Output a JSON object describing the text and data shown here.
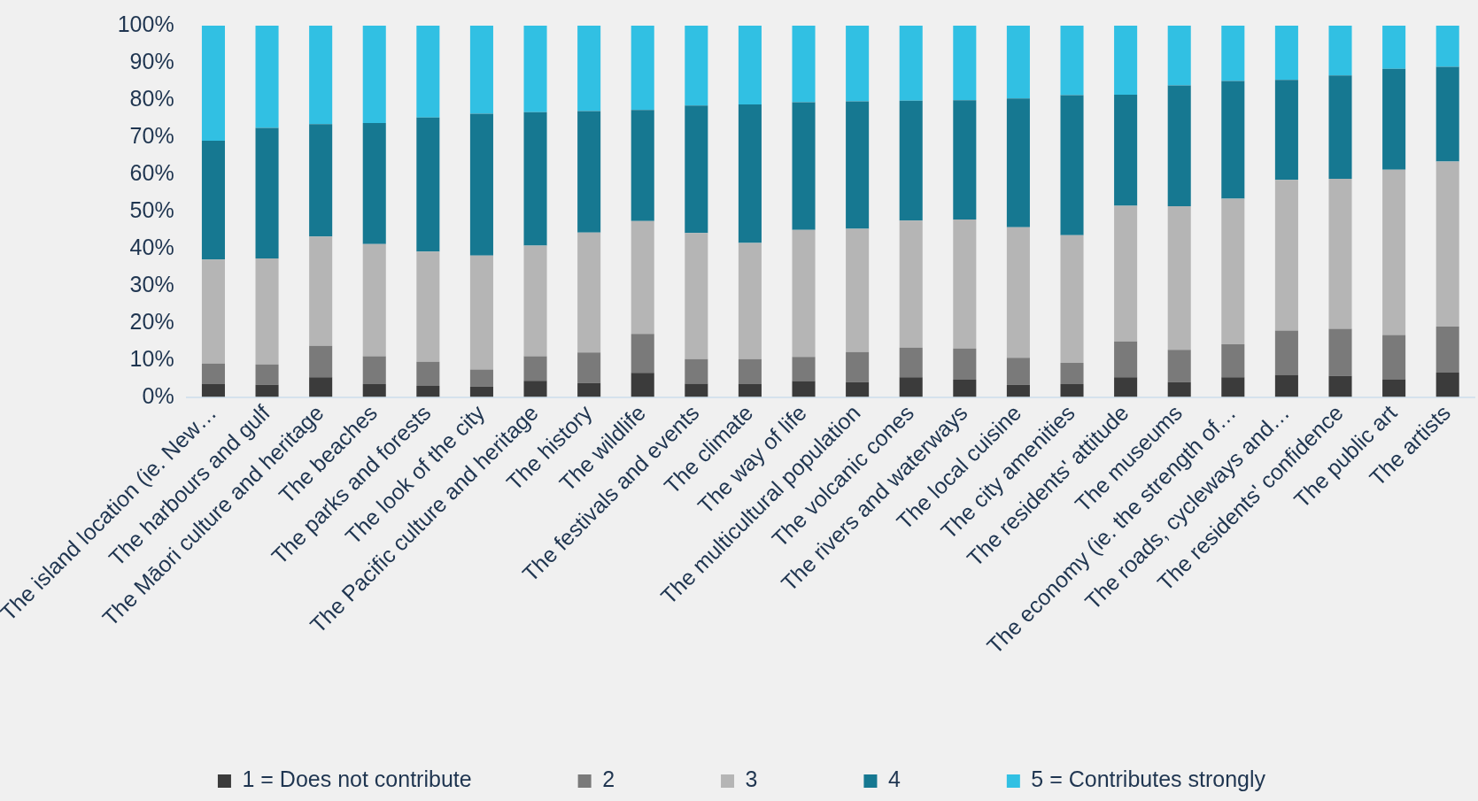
{
  "chart_data": {
    "type": "bar",
    "stacked": true,
    "grid": false,
    "legend": "bottom",
    "categories": [
      "The island location (ie. New…",
      "The harbours and gulf",
      "The Māori culture and heritage",
      "The beaches",
      "The parks and forests",
      "The look of the city",
      "The Pacific culture and heritage",
      "The history",
      "The wildlife",
      "The festivals and events",
      "The climate",
      "The way of life",
      "The multicultural population",
      "The volcanic cones",
      "The rivers and waterways",
      "The local cuisine",
      "The city amenities",
      "The residents' attitude",
      "The museums",
      "The economy (ie. the strength of…",
      "The roads, cycleways and…",
      "The residents' confidence",
      "The public art",
      "The artists"
    ],
    "series": [
      {
        "name": "1 = Does not contribute",
        "color": "#3b3b3b",
        "values": [
          3.5,
          3.3,
          5.3,
          3.5,
          3,
          2.8,
          4.4,
          3.8,
          6.5,
          3.6,
          3.5,
          4.3,
          4,
          5.3,
          4.7,
          3.3,
          3.5,
          5.3,
          4,
          5.3,
          6,
          5.7,
          4.8,
          6.6
        ]
      },
      {
        "name": "2",
        "color": "#7a7a7a",
        "values": [
          5.5,
          5.5,
          8.5,
          7.5,
          6.5,
          4.6,
          6.6,
          8.2,
          10.5,
          6.6,
          6.7,
          6.5,
          8.1,
          8,
          8.4,
          7.3,
          5.7,
          9.7,
          8.7,
          8.9,
          11.9,
          12.7,
          11.9,
          12.4
        ]
      },
      {
        "name": "3",
        "color": "#b5b5b5",
        "values": [
          28,
          28.5,
          29.4,
          30.2,
          29.7,
          30.7,
          29.8,
          32.3,
          30.4,
          34,
          31.3,
          34.2,
          33.2,
          34.2,
          34.7,
          35.1,
          34.4,
          36.5,
          38.7,
          39.2,
          40.6,
          40.4,
          44.5,
          44.4
        ]
      },
      {
        "name": "4",
        "color": "#167891",
        "values": [
          32,
          35.2,
          30.3,
          32.6,
          36.1,
          38.2,
          35.9,
          32.7,
          29.9,
          34.3,
          37.3,
          34.4,
          34.3,
          32.3,
          32.1,
          34.7,
          37.7,
          29.9,
          32.5,
          31.7,
          26.9,
          27.8,
          27.2,
          25.5
        ]
      },
      {
        "name": "5 = Contributes strongly",
        "color": "#31c0e3",
        "values": [
          31,
          27.5,
          26.5,
          26.2,
          24.7,
          23.7,
          23.3,
          23,
          22.7,
          21.5,
          21.2,
          20.6,
          20.4,
          20.2,
          20.1,
          19.6,
          18.7,
          18.6,
          16.1,
          14.9,
          14.6,
          13.4,
          11.6,
          11.1
        ]
      }
    ],
    "ylim": [
      0,
      100
    ],
    "yticks": [
      {
        "value": 0,
        "label": "0%"
      },
      {
        "value": 10,
        "label": "10%"
      },
      {
        "value": 20,
        "label": "20%"
      },
      {
        "value": 30,
        "label": "30%"
      },
      {
        "value": 40,
        "label": "40%"
      },
      {
        "value": 50,
        "label": "50%"
      },
      {
        "value": 60,
        "label": "60%"
      },
      {
        "value": 70,
        "label": "70%"
      },
      {
        "value": 80,
        "label": "80%"
      },
      {
        "value": 90,
        "label": "90%"
      },
      {
        "value": 100,
        "label": "100%"
      }
    ]
  }
}
